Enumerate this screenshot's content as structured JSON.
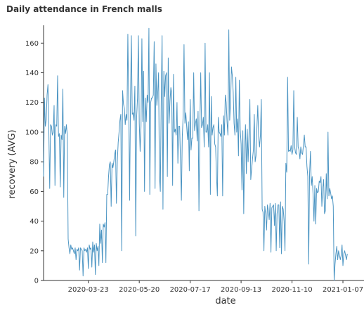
{
  "chart_data": {
    "type": "line",
    "title": "Daily attendance in French malls",
    "xlabel": "date",
    "ylabel": "recovery (AVG)",
    "ylim": [
      0,
      172
    ],
    "xlim": [
      "2020-02-01",
      "2021-01-31"
    ],
    "yticks": [
      0,
      20,
      40,
      60,
      80,
      100,
      120,
      140,
      160
    ],
    "xticks": [
      "2020-03-23",
      "2020-05-20",
      "2020-07-17",
      "2020-09-13",
      "2020-11-10",
      "2021-01-07"
    ],
    "grid": false,
    "line_color": "#4c95c3",
    "series": [
      {
        "start_date": "2020-02-01",
        "values": [
          70,
          123,
          104,
          108,
          125,
          132,
          100,
          62,
          105,
          104,
          98,
          100,
          118,
          64,
          105,
          104,
          138,
          97,
          99,
          63,
          98,
          95,
          129,
          56,
          104,
          99,
          105,
          98,
          28,
          22,
          18,
          24,
          21,
          22,
          20,
          18,
          22,
          14,
          21,
          20,
          22,
          7,
          22,
          21,
          20,
          3,
          22,
          20,
          21,
          19,
          22,
          8,
          24,
          21,
          22,
          9,
          26,
          19,
          24,
          4,
          25,
          20,
          23,
          10,
          38,
          25,
          34,
          12,
          38,
          36,
          39,
          12,
          58,
          58,
          70,
          78,
          80,
          50,
          79,
          76,
          80,
          85,
          88,
          52,
          80,
          93,
          100,
          108,
          112,
          20,
          128,
          119,
          116,
          105,
          112,
          108,
          166,
          120,
          54,
          121,
          165,
          112,
          113,
          108,
          131,
          30,
          110,
          123,
          165,
          106,
          87,
          104,
          163,
          107,
          141,
          60,
          123,
          107,
          125,
          120,
          170,
          58,
          120,
          123,
          123,
          125,
          161,
          62,
          146,
          118,
          126,
          140,
          70,
          60,
          120,
          165,
          48,
          141,
          124,
          138,
          140,
          70,
          150,
          106,
          121,
          130,
          126,
          64,
          139,
          100,
          102,
          98,
          120,
          79,
          104,
          104,
          80,
          54,
          97,
          111,
          159,
          106,
          113,
          104,
          95,
          107,
          74,
          122,
          88,
          96,
          96,
          140,
          101,
          106,
          109,
          94,
          114,
          47,
          101,
          140,
          103,
          105,
          110,
          90,
          160,
          100,
          100,
          105,
          90,
          140,
          58,
          124,
          98,
          103,
          105,
          92,
          90,
          70,
          57,
          110,
          100,
          99,
          97,
          105,
          57,
          111,
          98,
          125,
          120,
          107,
          98,
          169,
          108,
          120,
          144,
          138,
          127,
          106,
          98,
          137,
          100,
          109,
          84,
          135,
          102,
          92,
          61,
          101,
          45,
          88,
          105,
          72,
          102,
          80,
          98,
          122,
          68,
          75,
          82,
          88,
          112,
          80,
          84,
          103,
          118,
          97,
          90,
          98,
          122,
          48,
          46,
          20,
          50,
          45,
          34,
          51,
          47,
          41,
          52,
          19,
          49,
          50,
          51,
          37,
          52,
          20,
          45,
          51,
          51,
          22,
          53,
          18,
          50,
          48,
          40,
          20,
          79,
          73,
          137,
          87,
          88,
          87,
          91,
          85,
          88,
          128,
          90,
          86,
          85,
          110,
          90,
          88,
          82,
          90,
          86,
          85,
          91,
          98,
          90,
          90,
          77,
          70,
          11,
          72,
          87,
          64,
          70,
          58,
          40,
          64,
          38,
          62,
          59,
          60,
          67,
          66,
          70,
          50,
          62,
          68,
          45,
          47,
          72,
          55,
          100,
          57,
          62,
          59,
          55,
          57,
          50,
          0,
          11,
          18,
          23,
          14,
          20,
          17,
          14,
          17,
          24,
          10,
          18,
          20,
          17,
          14,
          18
        ]
      }
    ]
  }
}
